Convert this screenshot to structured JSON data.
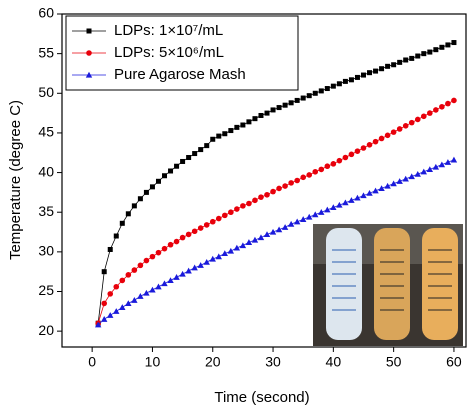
{
  "chart_data": {
    "type": "line",
    "x_label": "Time (second)",
    "y_label": "Temperature (degree C)",
    "xlim": [
      -5,
      62
    ],
    "ylim": [
      18,
      60
    ],
    "xticks": [
      0,
      10,
      20,
      30,
      40,
      50,
      60
    ],
    "yticks": [
      20,
      25,
      30,
      35,
      40,
      45,
      50,
      55,
      60
    ],
    "legend": "upper left",
    "x": [
      1,
      2,
      3,
      4,
      5,
      6,
      7,
      8,
      9,
      10,
      11,
      12,
      13,
      14,
      15,
      16,
      17,
      18,
      19,
      20,
      21,
      22,
      23,
      24,
      25,
      26,
      27,
      28,
      29,
      30,
      31,
      32,
      33,
      34,
      35,
      36,
      37,
      38,
      39,
      40,
      41,
      42,
      43,
      44,
      45,
      46,
      47,
      48,
      49,
      50,
      51,
      52,
      53,
      54,
      55,
      56,
      57,
      58,
      59,
      60
    ],
    "series": [
      {
        "name": "LDPs: 1×10⁷/mL",
        "color": "#000000",
        "marker": "square",
        "values": [
          21.0,
          27.5,
          30.3,
          32.0,
          33.6,
          34.8,
          35.8,
          36.7,
          37.5,
          38.2,
          38.9,
          39.6,
          40.2,
          40.8,
          41.4,
          41.9,
          42.4,
          42.9,
          43.4,
          44.2,
          44.6,
          44.9,
          45.3,
          45.7,
          46.0,
          46.4,
          46.8,
          47.2,
          47.5,
          47.9,
          48.2,
          48.5,
          48.8,
          49.1,
          49.4,
          49.7,
          50.0,
          50.3,
          50.6,
          50.9,
          51.2,
          51.5,
          51.7,
          52.0,
          52.3,
          52.6,
          52.8,
          53.1,
          53.4,
          53.6,
          53.9,
          54.2,
          54.4,
          54.7,
          55.0,
          55.2,
          55.5,
          55.8,
          56.1,
          56.4
        ]
      },
      {
        "name": "LDPs: 5×10⁶/mL",
        "color": "#e8000b",
        "marker": "circle",
        "values": [
          21.0,
          23.5,
          24.7,
          25.6,
          26.4,
          27.1,
          27.7,
          28.3,
          28.9,
          29.4,
          29.9,
          30.4,
          30.9,
          31.3,
          31.8,
          32.2,
          32.6,
          33.0,
          33.4,
          33.8,
          34.2,
          34.6,
          35.0,
          35.4,
          35.8,
          36.1,
          36.5,
          36.9,
          37.2,
          37.6,
          38.0,
          38.3,
          38.7,
          39.0,
          39.4,
          39.7,
          40.1,
          40.4,
          40.8,
          41.1,
          41.5,
          41.9,
          42.3,
          42.7,
          43.1,
          43.5,
          43.9,
          44.3,
          44.7,
          45.1,
          45.5,
          45.9,
          46.3,
          46.7,
          47.1,
          47.5,
          47.9,
          48.3,
          48.7,
          49.1
        ]
      },
      {
        "name": "Pure Agarose Mash",
        "color": "#1a1adb",
        "marker": "triangle",
        "values": [
          20.8,
          21.5,
          22.0,
          22.5,
          23.0,
          23.5,
          23.9,
          24.4,
          24.8,
          25.2,
          25.6,
          26.0,
          26.4,
          26.8,
          27.2,
          27.6,
          28.0,
          28.3,
          28.7,
          29.1,
          29.4,
          29.8,
          30.1,
          30.5,
          30.8,
          31.2,
          31.5,
          31.8,
          32.2,
          32.5,
          32.8,
          33.1,
          33.5,
          33.8,
          34.1,
          34.4,
          34.7,
          35.0,
          35.3,
          35.6,
          35.9,
          36.2,
          36.5,
          36.8,
          37.1,
          37.4,
          37.7,
          38.0,
          38.3,
          38.6,
          38.9,
          39.2,
          39.5,
          39.8,
          40.1,
          40.4,
          40.7,
          41.0,
          41.3,
          41.6
        ]
      }
    ]
  }
}
